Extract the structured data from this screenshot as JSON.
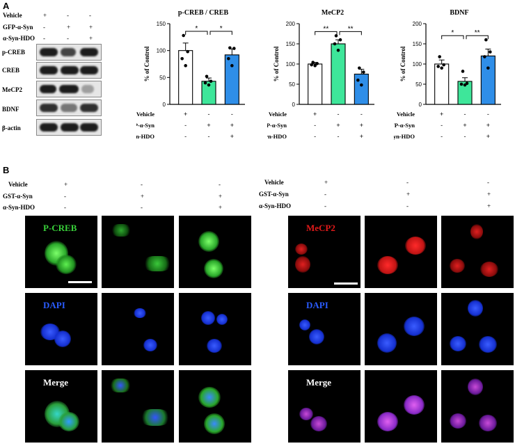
{
  "panels": {
    "a": "A",
    "b": "B"
  },
  "blot": {
    "treatments": [
      {
        "label": "Vehicle",
        "marks": [
          "+",
          "-",
          "-"
        ]
      },
      {
        "label": "GFP-α-Syn",
        "marks": [
          "-",
          "+",
          "+"
        ]
      },
      {
        "label": "α-Syn-HDO",
        "marks": [
          "-",
          "-",
          "+"
        ]
      }
    ],
    "rows": [
      "p-CREB",
      "CREB",
      "MeCP2",
      "BDNF",
      "β-actin"
    ]
  },
  "chart_data": [
    {
      "type": "bar",
      "title": "p-CREB / CREB",
      "ylabel": "% of Control",
      "ylim": [
        0,
        150
      ],
      "yticks": [
        0,
        50,
        100,
        150
      ],
      "categories": [
        "Vehicle",
        "GFP-α-Syn",
        "GFP-α-Syn + α-Syn-HDO"
      ],
      "values": [
        100,
        43,
        92
      ],
      "errors": [
        14,
        6,
        11
      ],
      "points": [
        [
          128,
          98,
          85,
          72
        ],
        [
          52,
          43,
          40,
          36
        ],
        [
          105,
          104,
          85,
          72
        ]
      ],
      "colors": [
        "#ffffff",
        "#3ee69a",
        "#2f8ee8"
      ],
      "significance": [
        {
          "from": 0,
          "to": 1,
          "label": "*"
        },
        {
          "from": 1,
          "to": 2,
          "label": "*"
        }
      ],
      "treatments": [
        {
          "label": "Vehicle",
          "marks": [
            "+",
            "-",
            "-"
          ]
        },
        {
          "label": "GFP-α-Syn",
          "marks": [
            "-",
            "+",
            "+"
          ]
        },
        {
          "label": "α-Syn-HDO",
          "marks": [
            "-",
            "-",
            "+"
          ]
        }
      ]
    },
    {
      "type": "bar",
      "title": "MeCP2",
      "ylabel": "% of Control",
      "ylim": [
        0,
        200
      ],
      "yticks": [
        0,
        50,
        100,
        150,
        200
      ],
      "categories": [
        "Vehicle",
        "GFP-α-Syn",
        "GFP-α-Syn + α-Syn-HDO"
      ],
      "values": [
        100,
        150,
        75
      ],
      "errors": [
        4,
        10,
        12
      ],
      "points": [
        [
          104,
          101,
          98,
          96
        ],
        [
          170,
          160,
          150,
          134
        ],
        [
          90,
          80,
          60,
          48
        ]
      ],
      "colors": [
        "#ffffff",
        "#3ee69a",
        "#2f8ee8"
      ],
      "significance": [
        {
          "from": 0,
          "to": 1,
          "label": "**"
        },
        {
          "from": 1,
          "to": 2,
          "label": "**"
        }
      ],
      "treatments": [
        {
          "label": "Vehicle",
          "marks": [
            "+",
            "-",
            "-"
          ]
        },
        {
          "label": "GFP-α-Syn",
          "marks": [
            "-",
            "+",
            "+"
          ]
        },
        {
          "label": "α-Syn-HDO",
          "marks": [
            "-",
            "-",
            "+"
          ]
        }
      ]
    },
    {
      "type": "bar",
      "title": "BDNF",
      "ylabel": "% of Control",
      "ylim": [
        0,
        200
      ],
      "yticks": [
        0,
        50,
        100,
        150,
        200
      ],
      "categories": [
        "Vehicle",
        "GFP-α-Syn",
        "GFP-α-Syn + α-Syn-HDO"
      ],
      "values": [
        100,
        57,
        120
      ],
      "errors": [
        10,
        9,
        17
      ],
      "points": [
        [
          118,
          98,
          94,
          90
        ],
        [
          82,
          52,
          50,
          48
        ],
        [
          160,
          130,
          118,
          90
        ]
      ],
      "colors": [
        "#ffffff",
        "#3ee69a",
        "#2f8ee8"
      ],
      "significance": [
        {
          "from": 0,
          "to": 1,
          "label": "*"
        },
        {
          "from": 1,
          "to": 2,
          "label": "**"
        }
      ],
      "treatments": [
        {
          "label": "Vehicle",
          "marks": [
            "+",
            "-",
            "-"
          ]
        },
        {
          "label": "GFP-α-Syn",
          "marks": [
            "-",
            "+",
            "+"
          ]
        },
        {
          "label": "α-Syn-HDO",
          "marks": [
            "-",
            "-",
            "+"
          ]
        }
      ]
    }
  ],
  "panel_b": {
    "left_treatments": [
      {
        "label": "Vehicle",
        "marks": [
          "+",
          "-",
          "-"
        ]
      },
      {
        "label": "GST-α-Syn",
        "marks": [
          "-",
          "+",
          "+"
        ]
      },
      {
        "label": "α-Syn-HDO",
        "marks": [
          "-",
          "-",
          "+"
        ]
      }
    ],
    "right_treatments": [
      {
        "label": "Vehicle",
        "marks": [
          "+",
          "-",
          "-"
        ]
      },
      {
        "label": "GST-α-Syn",
        "marks": [
          "-",
          "+",
          "+"
        ]
      },
      {
        "label": "α-Syn-HDO",
        "marks": [
          "-",
          "-",
          "+"
        ]
      }
    ],
    "left_rows": [
      "P-CREB",
      "DAPI",
      "Merge"
    ],
    "right_rows": [
      "MeCP2",
      "DAPI",
      "Merge"
    ],
    "colors": {
      "pcreb": "#39d13a",
      "mecp2": "#e11a1a",
      "dapi": "#1f3cff",
      "merge_right": "#c04ad8"
    }
  }
}
